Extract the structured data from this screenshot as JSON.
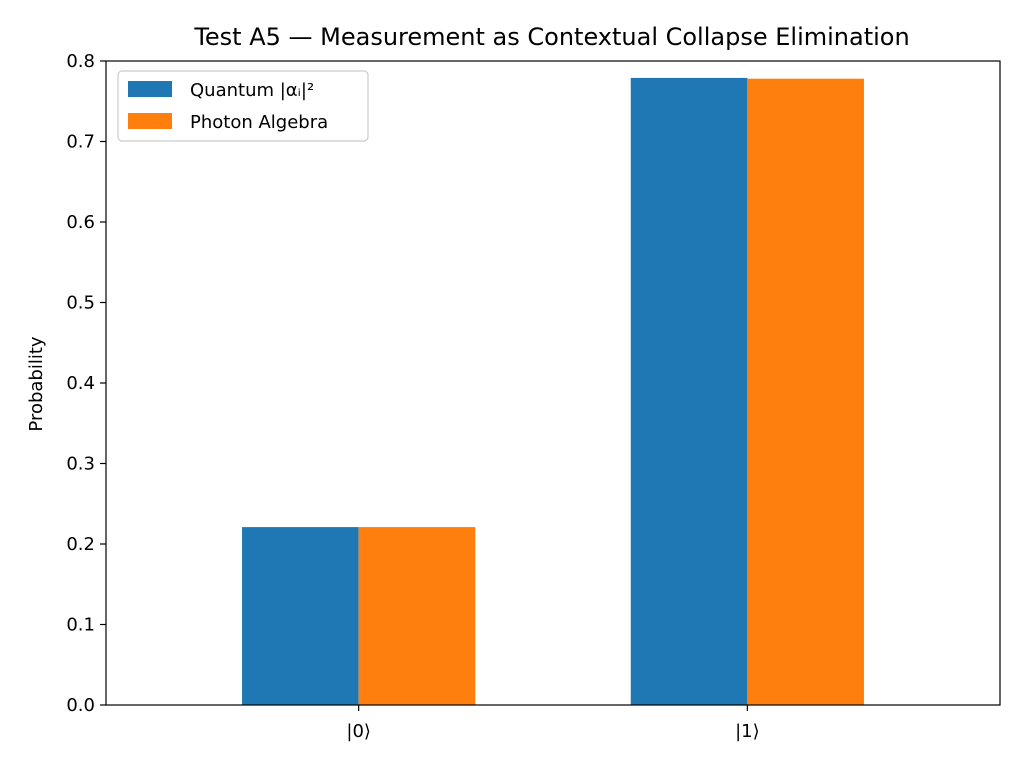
{
  "chart_data": {
    "type": "bar",
    "title": "Test A5 — Measurement as Contextual Collapse Elimination",
    "xlabel": "",
    "ylabel": "Probability",
    "categories": [
      "|0⟩",
      "|1⟩"
    ],
    "series": [
      {
        "name": "Quantum |αᵢ|²",
        "values": [
          0.221,
          0.779
        ],
        "color": "#1f77b4"
      },
      {
        "name": "Photon Algebra",
        "values": [
          0.221,
          0.778
        ],
        "color": "#ff7f0e"
      }
    ],
    "ylim": [
      0,
      0.8
    ],
    "yticks": [
      "0.0",
      "0.1",
      "0.2",
      "0.3",
      "0.4",
      "0.5",
      "0.6",
      "0.7",
      "0.8"
    ],
    "legend_position": "top-left",
    "grid": false
  }
}
